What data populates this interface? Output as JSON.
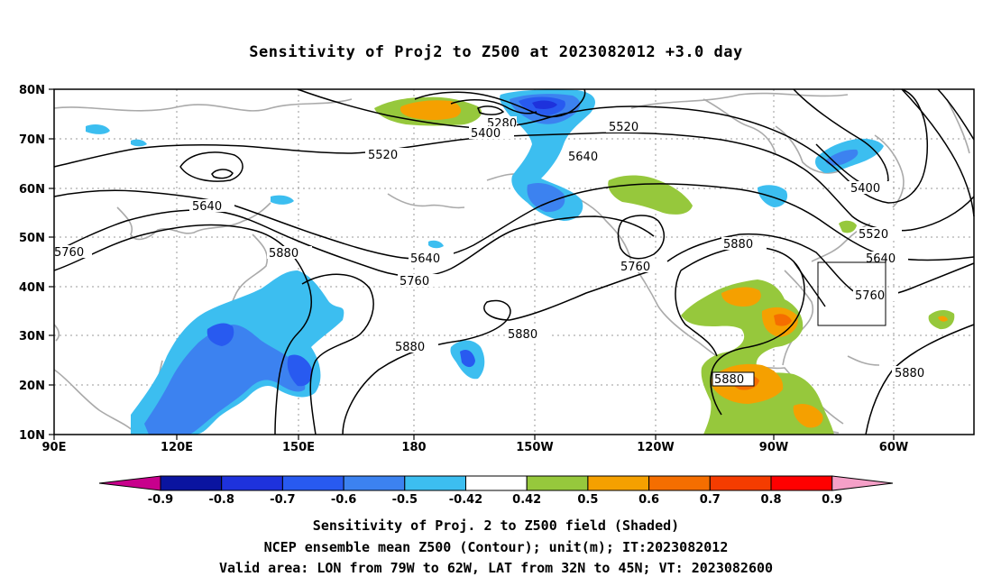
{
  "title": "Sensitivity of Proj2 to Z500 at 2023082012 +3.0 day",
  "captions": [
    "Sensitivity of Proj. 2 to Z500 field (Shaded)",
    "NCEP ensemble mean Z500 (Contour); unit(m); IT:2023082012",
    "Valid area: LON from 79W to 62W, LAT from 32N to 45N; VT: 2023082600"
  ],
  "map": {
    "lat_labels": [
      "80N",
      "70N",
      "60N",
      "50N",
      "40N",
      "30N",
      "20N",
      "10N"
    ],
    "lon_labels": [
      "90E",
      "120E",
      "150E",
      "180",
      "150W",
      "120W",
      "90W",
      "60W"
    ],
    "contour_labels": [
      "5280",
      "5400",
      "5520",
      "5520",
      "5640",
      "5640",
      "5760",
      "5880",
      "5640",
      "5760",
      "5760",
      "5880",
      "5880",
      "5880",
      "5400",
      "5520",
      "5640",
      "5760",
      "5880",
      "5880"
    ],
    "valid_area": {
      "lon": [
        "79W",
        "62W"
      ],
      "lat": [
        "32N",
        "45N"
      ]
    }
  },
  "colorbar": {
    "labels": [
      "-0.9",
      "-0.8",
      "-0.7",
      "-0.6",
      "-0.5",
      "-0.42",
      "0.42",
      "0.5",
      "0.6",
      "0.7",
      "0.8",
      "0.9"
    ],
    "colors": [
      "#c8008c",
      "#0a14a0",
      "#1e32dc",
      "#285af0",
      "#3c82f0",
      "#3cbef0",
      "#ffffff",
      "#96c83c",
      "#f5a000",
      "#f56e00",
      "#f53c00",
      "#ff0000",
      "#f5a0c8"
    ]
  }
}
